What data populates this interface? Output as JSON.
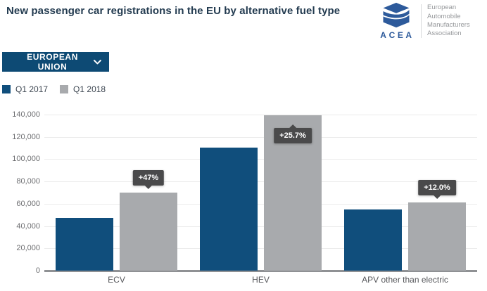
{
  "header": {
    "title": "New passenger car registrations in the EU by alternative fuel type",
    "logo": {
      "acronym": "ACEA",
      "org_lines": [
        "European",
        "Automobile",
        "Manufacturers",
        "Association"
      ],
      "brand_color": "#2d5a9b"
    }
  },
  "controls": {
    "region_dropdown": {
      "value": "EUROPEAN UNION"
    }
  },
  "legend": [
    {
      "label": "Q1 2017",
      "color": "#104e7c"
    },
    {
      "label": "Q1 2018",
      "color": "#a8aaad"
    }
  ],
  "chart_data": {
    "type": "bar",
    "title": "New passenger car registrations in the EU by alternative fuel type",
    "categories": [
      "ECV",
      "HEV",
      "APV other than electric"
    ],
    "series": [
      {
        "name": "Q1 2017",
        "color": "#104e7c",
        "values": [
          47500,
          110700,
          54800
        ]
      },
      {
        "name": "Q1 2018",
        "color": "#a8aaad",
        "values": [
          69900,
          139100,
          61300
        ]
      }
    ],
    "change_labels": [
      {
        "text": "+47%",
        "category": "ECV",
        "position": "above"
      },
      {
        "text": "+25.7%",
        "category": "HEV",
        "position": "inside"
      },
      {
        "text": "+12.0%",
        "category": "APV other than electric",
        "position": "above"
      }
    ],
    "ylim": [
      0,
      140000
    ],
    "ytick_interval": 20000,
    "yticks": [
      "0",
      "20,000",
      "40,000",
      "60,000",
      "80,000",
      "100,000",
      "120,000",
      "140,000"
    ],
    "grid": true,
    "legend_position": "top-left",
    "tooltip_bg": "#4a4a4b"
  }
}
